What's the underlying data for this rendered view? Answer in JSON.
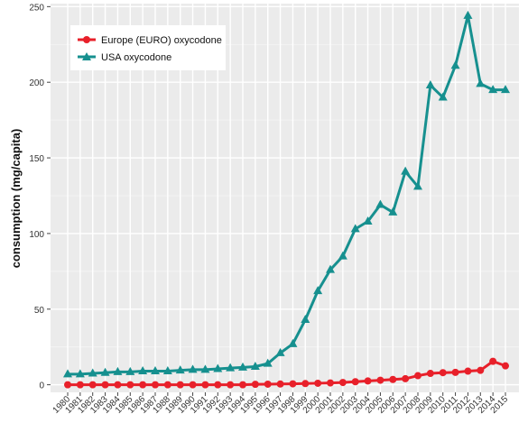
{
  "chart_data": {
    "type": "line",
    "title": "",
    "xlabel": "",
    "ylabel": "consumption (mg/capita)",
    "x": [
      1980,
      1981,
      1982,
      1983,
      1984,
      1985,
      1986,
      1987,
      1988,
      1989,
      1990,
      1991,
      1992,
      1993,
      1994,
      1995,
      1996,
      1997,
      1998,
      1999,
      2000,
      2001,
      2002,
      2003,
      2004,
      2005,
      2006,
      2007,
      2008,
      2009,
      2010,
      2011,
      2012,
      2013,
      2014,
      2015
    ],
    "x_tick_labels": [
      "1980",
      "1981",
      "1982",
      "1983",
      "1984",
      "1985",
      "1986",
      "1987",
      "1988",
      "1989",
      "1990",
      "1991",
      "1992",
      "1993",
      "1994",
      "1995",
      "1996",
      "1997",
      "1998",
      "1999",
      "2000",
      "2001",
      "2002",
      "2003",
      "2004",
      "2005",
      "2006",
      "2007",
      "2008",
      "2009",
      "2010",
      "2011",
      "2012",
      "2013",
      "2014",
      "2015"
    ],
    "ylim": [
      -5,
      252
    ],
    "y_ticks": [
      0,
      50,
      100,
      150,
      200,
      250
    ],
    "y_tick_labels": [
      "0",
      "50",
      "100",
      "150",
      "200",
      "250"
    ],
    "grid": true,
    "legend_position": "top-left",
    "series": [
      {
        "name": "Europe (EURO) oxycodone",
        "color": "#e8202a",
        "marker": "circle",
        "values": [
          0,
          0,
          0,
          0,
          0,
          0,
          0,
          0,
          0,
          0,
          0,
          0,
          0,
          0,
          0,
          0.3,
          0.4,
          0.5,
          0.6,
          0.8,
          1,
          1.2,
          1.5,
          2,
          2.5,
          3,
          3.5,
          4,
          6,
          7.5,
          8,
          8.2,
          9,
          9.5,
          15.5,
          12.5
        ]
      },
      {
        "name": "USA oxycodone",
        "color": "#16908f",
        "marker": "triangle",
        "values": [
          7,
          7,
          7.5,
          8,
          8.5,
          8.5,
          9,
          9,
          9,
          9.5,
          10,
          10,
          10.5,
          11,
          11.5,
          12,
          14,
          21,
          27,
          43,
          62,
          76,
          85,
          103,
          108,
          119,
          114,
          141,
          131,
          198,
          190,
          211,
          244,
          199,
          195,
          195
        ]
      }
    ]
  }
}
